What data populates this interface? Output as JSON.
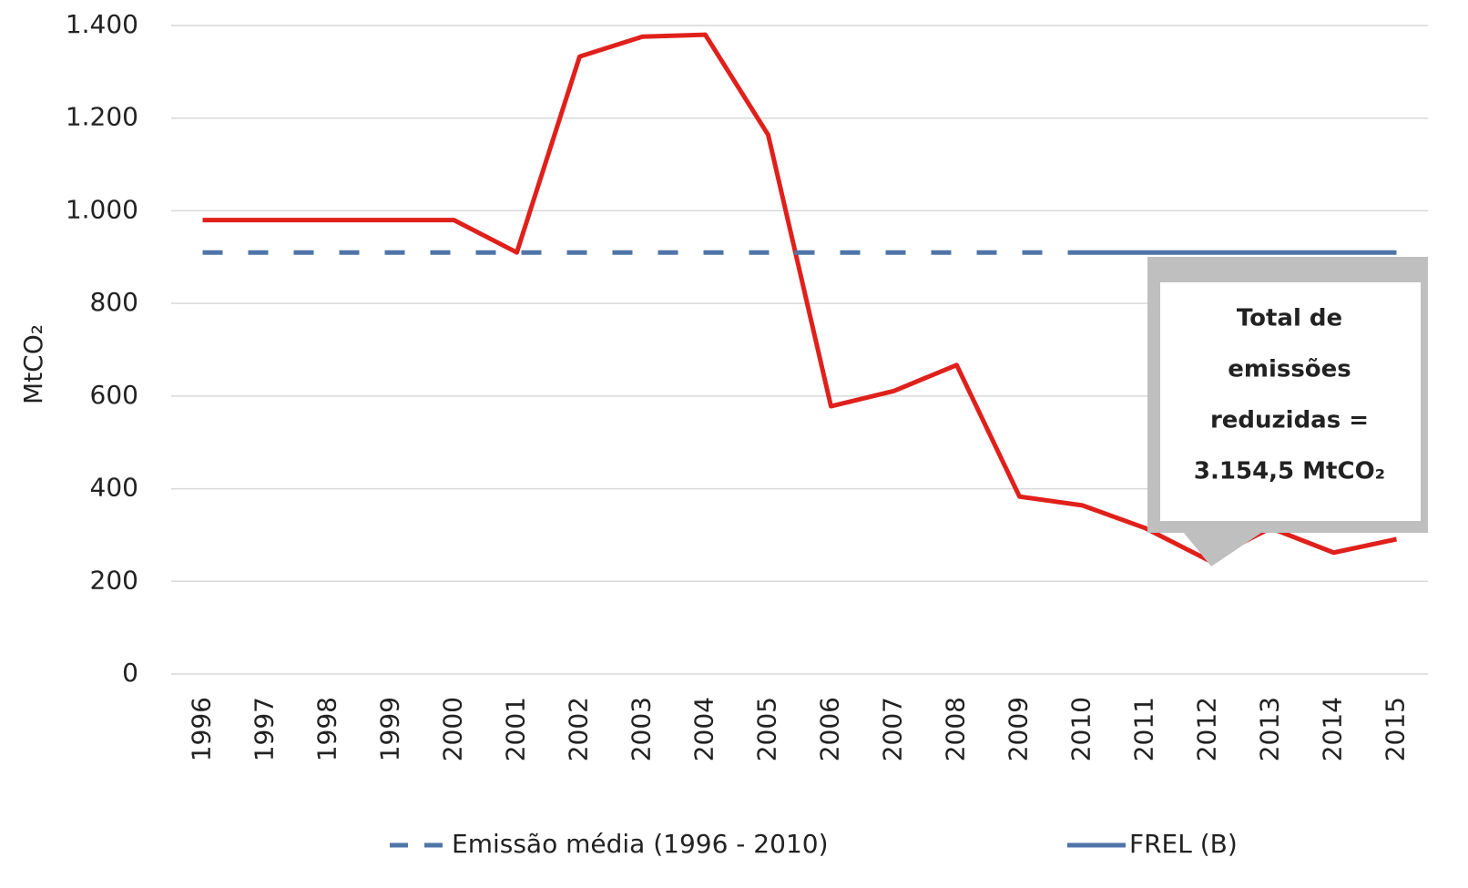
{
  "chart_data": {
    "type": "line",
    "y_label": "MtCO₂",
    "categories": [
      "1996",
      "1997",
      "1998",
      "1999",
      "2000",
      "2001",
      "2002",
      "2003",
      "2004",
      "2005",
      "2006",
      "2007",
      "2008",
      "2009",
      "2010",
      "2011",
      "2012",
      "2013",
      "2014",
      "2015"
    ],
    "series": [
      {
        "color": "#e0201b",
        "line_style": "solid",
        "values": [
          980,
          980,
          980,
          980,
          980,
          910,
          1333,
          1376,
          1380,
          1164,
          578,
          611,
          667,
          383,
          364,
          315,
          246,
          315,
          262,
          291
        ]
      },
      {
        "name": "Emissão média (1996 - 2010)",
        "color": "#4f74a8",
        "line_style": "dashed",
        "values": [
          910,
          910,
          910,
          910,
          910,
          910,
          910,
          910,
          910,
          910,
          910,
          910,
          910,
          910,
          910,
          null,
          null,
          null,
          null,
          null
        ]
      },
      {
        "name": "FREL (B)",
        "color": "#4f74a8",
        "line_style": "solid",
        "values": [
          null,
          null,
          null,
          null,
          null,
          null,
          null,
          null,
          null,
          null,
          null,
          null,
          null,
          null,
          910,
          910,
          910,
          910,
          910,
          910
        ]
      }
    ],
    "ylim": [
      0,
      1400
    ],
    "yticks": [
      0,
      200,
      400,
      600,
      800,
      {
        "value": 1000,
        "label": "1.000"
      },
      {
        "value": 1200,
        "label": "1.200"
      },
      {
        "value": 1400,
        "label": "1.400"
      }
    ],
    "grid": true,
    "legend": "bottom",
    "annotation": {
      "lines": [
        "Total de",
        "emissões",
        "reduzidas =",
        "3.154,5 MtCO₂"
      ]
    }
  }
}
